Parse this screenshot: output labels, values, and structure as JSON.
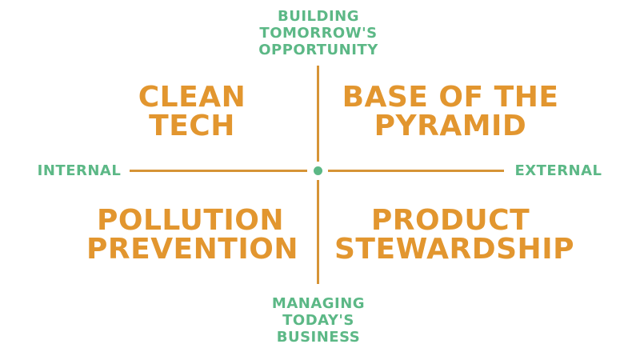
{
  "axes": {
    "top": [
      "BUILDING",
      "TOMORROW'S",
      "OPPORTUNITY"
    ],
    "bottom": [
      "MANAGING",
      "TODAY'S",
      "BUSINESS"
    ],
    "left": "INTERNAL",
    "right": "EXTERNAL"
  },
  "quadrants": {
    "top_left": [
      "CLEAN",
      "TECH"
    ],
    "top_right": [
      "BASE OF THE",
      "PYRAMID"
    ],
    "bottom_left": [
      "POLLUTION",
      "PREVENTION"
    ],
    "bottom_right": [
      "PRODUCT",
      "STEWARDSHIP"
    ]
  },
  "colors": {
    "axis_label": "#5cb886",
    "quadrant_text": "#e2962f",
    "axis_line": "#d69436",
    "center_dot": "#5cb886"
  }
}
